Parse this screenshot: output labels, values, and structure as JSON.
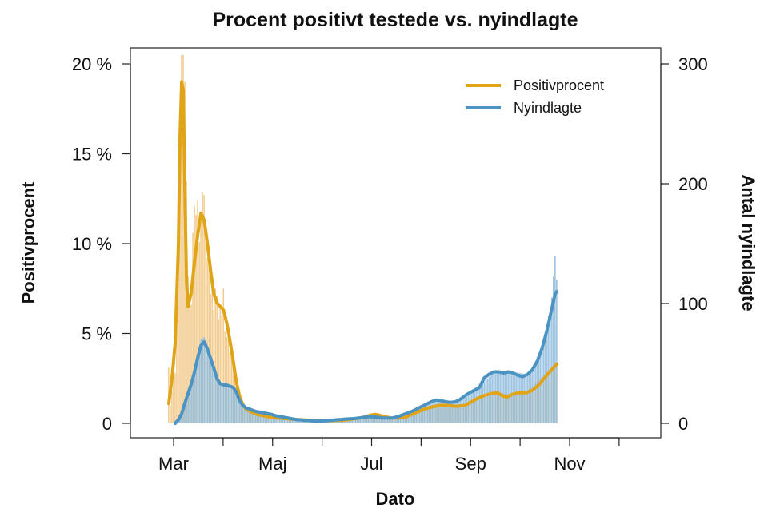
{
  "chart_data": {
    "type": "bar+line",
    "title": "Procent positivt testede vs. nyindlagte",
    "xlabel": "Dato",
    "ylabel_left": "Positivprocent",
    "ylabel_right": "Antal nyindlagte",
    "x_ticks": [
      "Mar",
      "Maj",
      "Jul",
      "Sep",
      "Nov"
    ],
    "y_left_ticks": [
      "0",
      "5 %",
      "10 %",
      "15 %",
      "20 %"
    ],
    "y_right_ticks": [
      "0",
      "100",
      "200",
      "300"
    ],
    "ylim_left": [
      0,
      20
    ],
    "ylim_right": [
      0,
      300
    ],
    "colors": {
      "positive": "#E0A418",
      "admissions": "#4A93C3",
      "positive_bars": "#F2CC8F",
      "admissions_bars": "#8FBBDD"
    },
    "legend": {
      "position": "top-right",
      "entries": [
        "Positivprocent",
        "Nyindlagte"
      ]
    },
    "series": [
      {
        "name": "Positivprocent",
        "axis": "left",
        "smoothed": [
          [
            -3,
            1.1
          ],
          [
            -1,
            2.5
          ],
          [
            1,
            4.5
          ],
          [
            3,
            10
          ],
          [
            4,
            16
          ],
          [
            5,
            19
          ],
          [
            6,
            18.5
          ],
          [
            7,
            13
          ],
          [
            8,
            8
          ],
          [
            9,
            6.5
          ],
          [
            11,
            7.3
          ],
          [
            13,
            9
          ],
          [
            15,
            10.5
          ],
          [
            17,
            11.7
          ],
          [
            19,
            11.3
          ],
          [
            21,
            10
          ],
          [
            23,
            8.5
          ],
          [
            25,
            7.2
          ],
          [
            27,
            6.7
          ],
          [
            29,
            6.5
          ],
          [
            31,
            6.3
          ],
          [
            33,
            5.6
          ],
          [
            35,
            4.6
          ],
          [
            37,
            3.5
          ],
          [
            39,
            2.3
          ],
          [
            41,
            1.5
          ],
          [
            43,
            1.05
          ],
          [
            45,
            0.8
          ],
          [
            48,
            0.65
          ],
          [
            52,
            0.5
          ],
          [
            56,
            0.42
          ],
          [
            60,
            0.35
          ],
          [
            64,
            0.3
          ],
          [
            68,
            0.28
          ],
          [
            72,
            0.25
          ],
          [
            76,
            0.22
          ],
          [
            80,
            0.2
          ],
          [
            84,
            0.18
          ],
          [
            88,
            0.17
          ],
          [
            92,
            0.15
          ],
          [
            96,
            0.15
          ],
          [
            100,
            0.16
          ],
          [
            104,
            0.17
          ],
          [
            108,
            0.2
          ],
          [
            112,
            0.25
          ],
          [
            116,
            0.3
          ],
          [
            118,
            0.35
          ],
          [
            120,
            0.4
          ],
          [
            122,
            0.45
          ],
          [
            125,
            0.5
          ],
          [
            128,
            0.45
          ],
          [
            131,
            0.38
          ],
          [
            135,
            0.3
          ],
          [
            140,
            0.3
          ],
          [
            144,
            0.35
          ],
          [
            148,
            0.5
          ],
          [
            152,
            0.65
          ],
          [
            156,
            0.8
          ],
          [
            160,
            0.9
          ],
          [
            165,
            1.0
          ],
          [
            170,
            1.0
          ],
          [
            176,
            0.95
          ],
          [
            181,
            1.0
          ],
          [
            185,
            1.2
          ],
          [
            189,
            1.4
          ],
          [
            193,
            1.55
          ],
          [
            197,
            1.65
          ],
          [
            201,
            1.7
          ],
          [
            204,
            1.55
          ],
          [
            207,
            1.45
          ],
          [
            210,
            1.6
          ],
          [
            214,
            1.7
          ],
          [
            219,
            1.7
          ],
          [
            223,
            1.85
          ],
          [
            227,
            2.15
          ],
          [
            231,
            2.6
          ],
          [
            235,
            3.0
          ],
          [
            238,
            3.3
          ]
        ],
        "daily": [
          [
            -3,
            3.1
          ],
          [
            -2,
            1.0
          ],
          [
            -1,
            1.8
          ],
          [
            0,
            3.6
          ],
          [
            1,
            2.8
          ],
          [
            2,
            6.5
          ],
          [
            3,
            8.1
          ],
          [
            4,
            16.2
          ],
          [
            5,
            20.5
          ],
          [
            6,
            20.5
          ],
          [
            7,
            19.0
          ],
          [
            8,
            13.5
          ],
          [
            9,
            8.2
          ],
          [
            10,
            7.0
          ],
          [
            11,
            6.6
          ],
          [
            12,
            10.6
          ],
          [
            13,
            12.1
          ],
          [
            14,
            11.6
          ],
          [
            15,
            12.4
          ],
          [
            16,
            10.1
          ],
          [
            17,
            11.2
          ],
          [
            18,
            12.9
          ],
          [
            19,
            12.7
          ],
          [
            20,
            10.4
          ],
          [
            21,
            9.2
          ],
          [
            22,
            9.8
          ],
          [
            23,
            7.2
          ],
          [
            24,
            8.0
          ],
          [
            25,
            6.3
          ],
          [
            26,
            7.5
          ],
          [
            27,
            7.1
          ],
          [
            28,
            5.8
          ],
          [
            29,
            6.6
          ],
          [
            30,
            6.0
          ],
          [
            31,
            7.5
          ],
          [
            32,
            5.1
          ],
          [
            33,
            4.8
          ],
          [
            34,
            4.7
          ],
          [
            35,
            3.9
          ],
          [
            36,
            3.8
          ],
          [
            37,
            3.6
          ],
          [
            38,
            3.0
          ],
          [
            39,
            2.4
          ],
          [
            40,
            2.0
          ],
          [
            41,
            1.6
          ],
          [
            42,
            1.4
          ],
          [
            44,
            1.0
          ],
          [
            46,
            0.9
          ],
          [
            48,
            0.8
          ],
          [
            52,
            0.6
          ],
          [
            56,
            0.5
          ],
          [
            60,
            0.4
          ],
          [
            70,
            0.3
          ],
          [
            80,
            0.25
          ],
          [
            90,
            0.2
          ],
          [
            100,
            0.18
          ],
          [
            110,
            0.25
          ],
          [
            118,
            0.4
          ],
          [
            125,
            0.6
          ],
          [
            130,
            0.45
          ],
          [
            140,
            0.3
          ],
          [
            150,
            0.55
          ],
          [
            160,
            0.9
          ],
          [
            170,
            1.0
          ],
          [
            180,
            1.0
          ],
          [
            190,
            1.5
          ],
          [
            200,
            1.8
          ],
          [
            210,
            1.6
          ],
          [
            220,
            1.8
          ],
          [
            230,
            2.7
          ],
          [
            238,
            3.3
          ]
        ]
      },
      {
        "name": "Nyindlagte",
        "axis": "right",
        "smoothed": [
          [
            1,
            0
          ],
          [
            3,
            3
          ],
          [
            5,
            8
          ],
          [
            7,
            17
          ],
          [
            9,
            25
          ],
          [
            11,
            33
          ],
          [
            13,
            43
          ],
          [
            15,
            55
          ],
          [
            17,
            65
          ],
          [
            19,
            68
          ],
          [
            21,
            62
          ],
          [
            23,
            54
          ],
          [
            25,
            46
          ],
          [
            27,
            37
          ],
          [
            29,
            33
          ],
          [
            31,
            32
          ],
          [
            33,
            32
          ],
          [
            35,
            31
          ],
          [
            37,
            30
          ],
          [
            39,
            26
          ],
          [
            41,
            19
          ],
          [
            43,
            15
          ],
          [
            45,
            13
          ],
          [
            47,
            12
          ],
          [
            49,
            11
          ],
          [
            51,
            10
          ],
          [
            53,
            9.5
          ],
          [
            55,
            9
          ],
          [
            57,
            8.5
          ],
          [
            59,
            8
          ],
          [
            61,
            7.5
          ],
          [
            63,
            6.5
          ],
          [
            65,
            6
          ],
          [
            67,
            5.5
          ],
          [
            69,
            5
          ],
          [
            71,
            4.5
          ],
          [
            73,
            4
          ],
          [
            75,
            3.5
          ],
          [
            77,
            3
          ],
          [
            79,
            3
          ],
          [
            81,
            2.5
          ],
          [
            83,
            2.5
          ],
          [
            85,
            2.3
          ],
          [
            87,
            2
          ],
          [
            89,
            1.8
          ],
          [
            91,
            2
          ],
          [
            93,
            2
          ],
          [
            95,
            2.2
          ],
          [
            97,
            2.5
          ],
          [
            99,
            2.7
          ],
          [
            101,
            3
          ],
          [
            103,
            3.2
          ],
          [
            106,
            3.5
          ],
          [
            109,
            3.8
          ],
          [
            112,
            4
          ],
          [
            115,
            4.5
          ],
          [
            118,
            5
          ],
          [
            121,
            5.5
          ],
          [
            124,
            5.5
          ],
          [
            127,
            5
          ],
          [
            130,
            4.5
          ],
          [
            133,
            4.5
          ],
          [
            136,
            4.5
          ],
          [
            139,
            5.5
          ],
          [
            142,
            7
          ],
          [
            145,
            8.5
          ],
          [
            148,
            10
          ],
          [
            151,
            12
          ],
          [
            154,
            14
          ],
          [
            157,
            16
          ],
          [
            160,
            18
          ],
          [
            163,
            19.5
          ],
          [
            166,
            19
          ],
          [
            169,
            18
          ],
          [
            172,
            17.5
          ],
          [
            175,
            18
          ],
          [
            178,
            20
          ],
          [
            182,
            24
          ],
          [
            186,
            27
          ],
          [
            190,
            30
          ],
          [
            193,
            38
          ],
          [
            196,
            41
          ],
          [
            199,
            43
          ],
          [
            202,
            43
          ],
          [
            205,
            42
          ],
          [
            208,
            43
          ],
          [
            211,
            42
          ],
          [
            214,
            40
          ],
          [
            217,
            39
          ],
          [
            220,
            41
          ],
          [
            223,
            45
          ],
          [
            226,
            52
          ],
          [
            229,
            63
          ],
          [
            232,
            78
          ],
          [
            235,
            96
          ],
          [
            237,
            108
          ],
          [
            238,
            110
          ]
        ],
        "daily": [
          [
            1,
            2
          ],
          [
            3,
            4
          ],
          [
            5,
            10
          ],
          [
            7,
            20
          ],
          [
            9,
            28
          ],
          [
            11,
            35
          ],
          [
            13,
            45
          ],
          [
            15,
            58
          ],
          [
            17,
            70
          ],
          [
            19,
            72
          ],
          [
            21,
            63
          ],
          [
            23,
            56
          ],
          [
            25,
            47
          ],
          [
            27,
            39
          ],
          [
            29,
            33
          ],
          [
            31,
            33
          ],
          [
            33,
            31
          ],
          [
            35,
            32
          ],
          [
            37,
            30
          ],
          [
            39,
            27
          ],
          [
            41,
            20
          ],
          [
            43,
            15
          ],
          [
            45,
            13
          ],
          [
            50,
            10
          ],
          [
            55,
            9
          ],
          [
            60,
            8
          ],
          [
            65,
            6
          ],
          [
            70,
            5
          ],
          [
            75,
            4
          ],
          [
            80,
            3
          ],
          [
            90,
            2
          ],
          [
            100,
            3
          ],
          [
            110,
            4
          ],
          [
            120,
            5
          ],
          [
            130,
            5
          ],
          [
            140,
            6
          ],
          [
            150,
            11
          ],
          [
            160,
            18
          ],
          [
            170,
            18
          ],
          [
            180,
            20
          ],
          [
            190,
            31
          ],
          [
            200,
            44
          ],
          [
            210,
            43
          ],
          [
            220,
            41
          ],
          [
            225,
            52
          ],
          [
            230,
            68
          ],
          [
            233,
            90
          ],
          [
            235,
            105
          ],
          [
            237,
            140
          ],
          [
            238,
            120
          ]
        ]
      }
    ]
  }
}
